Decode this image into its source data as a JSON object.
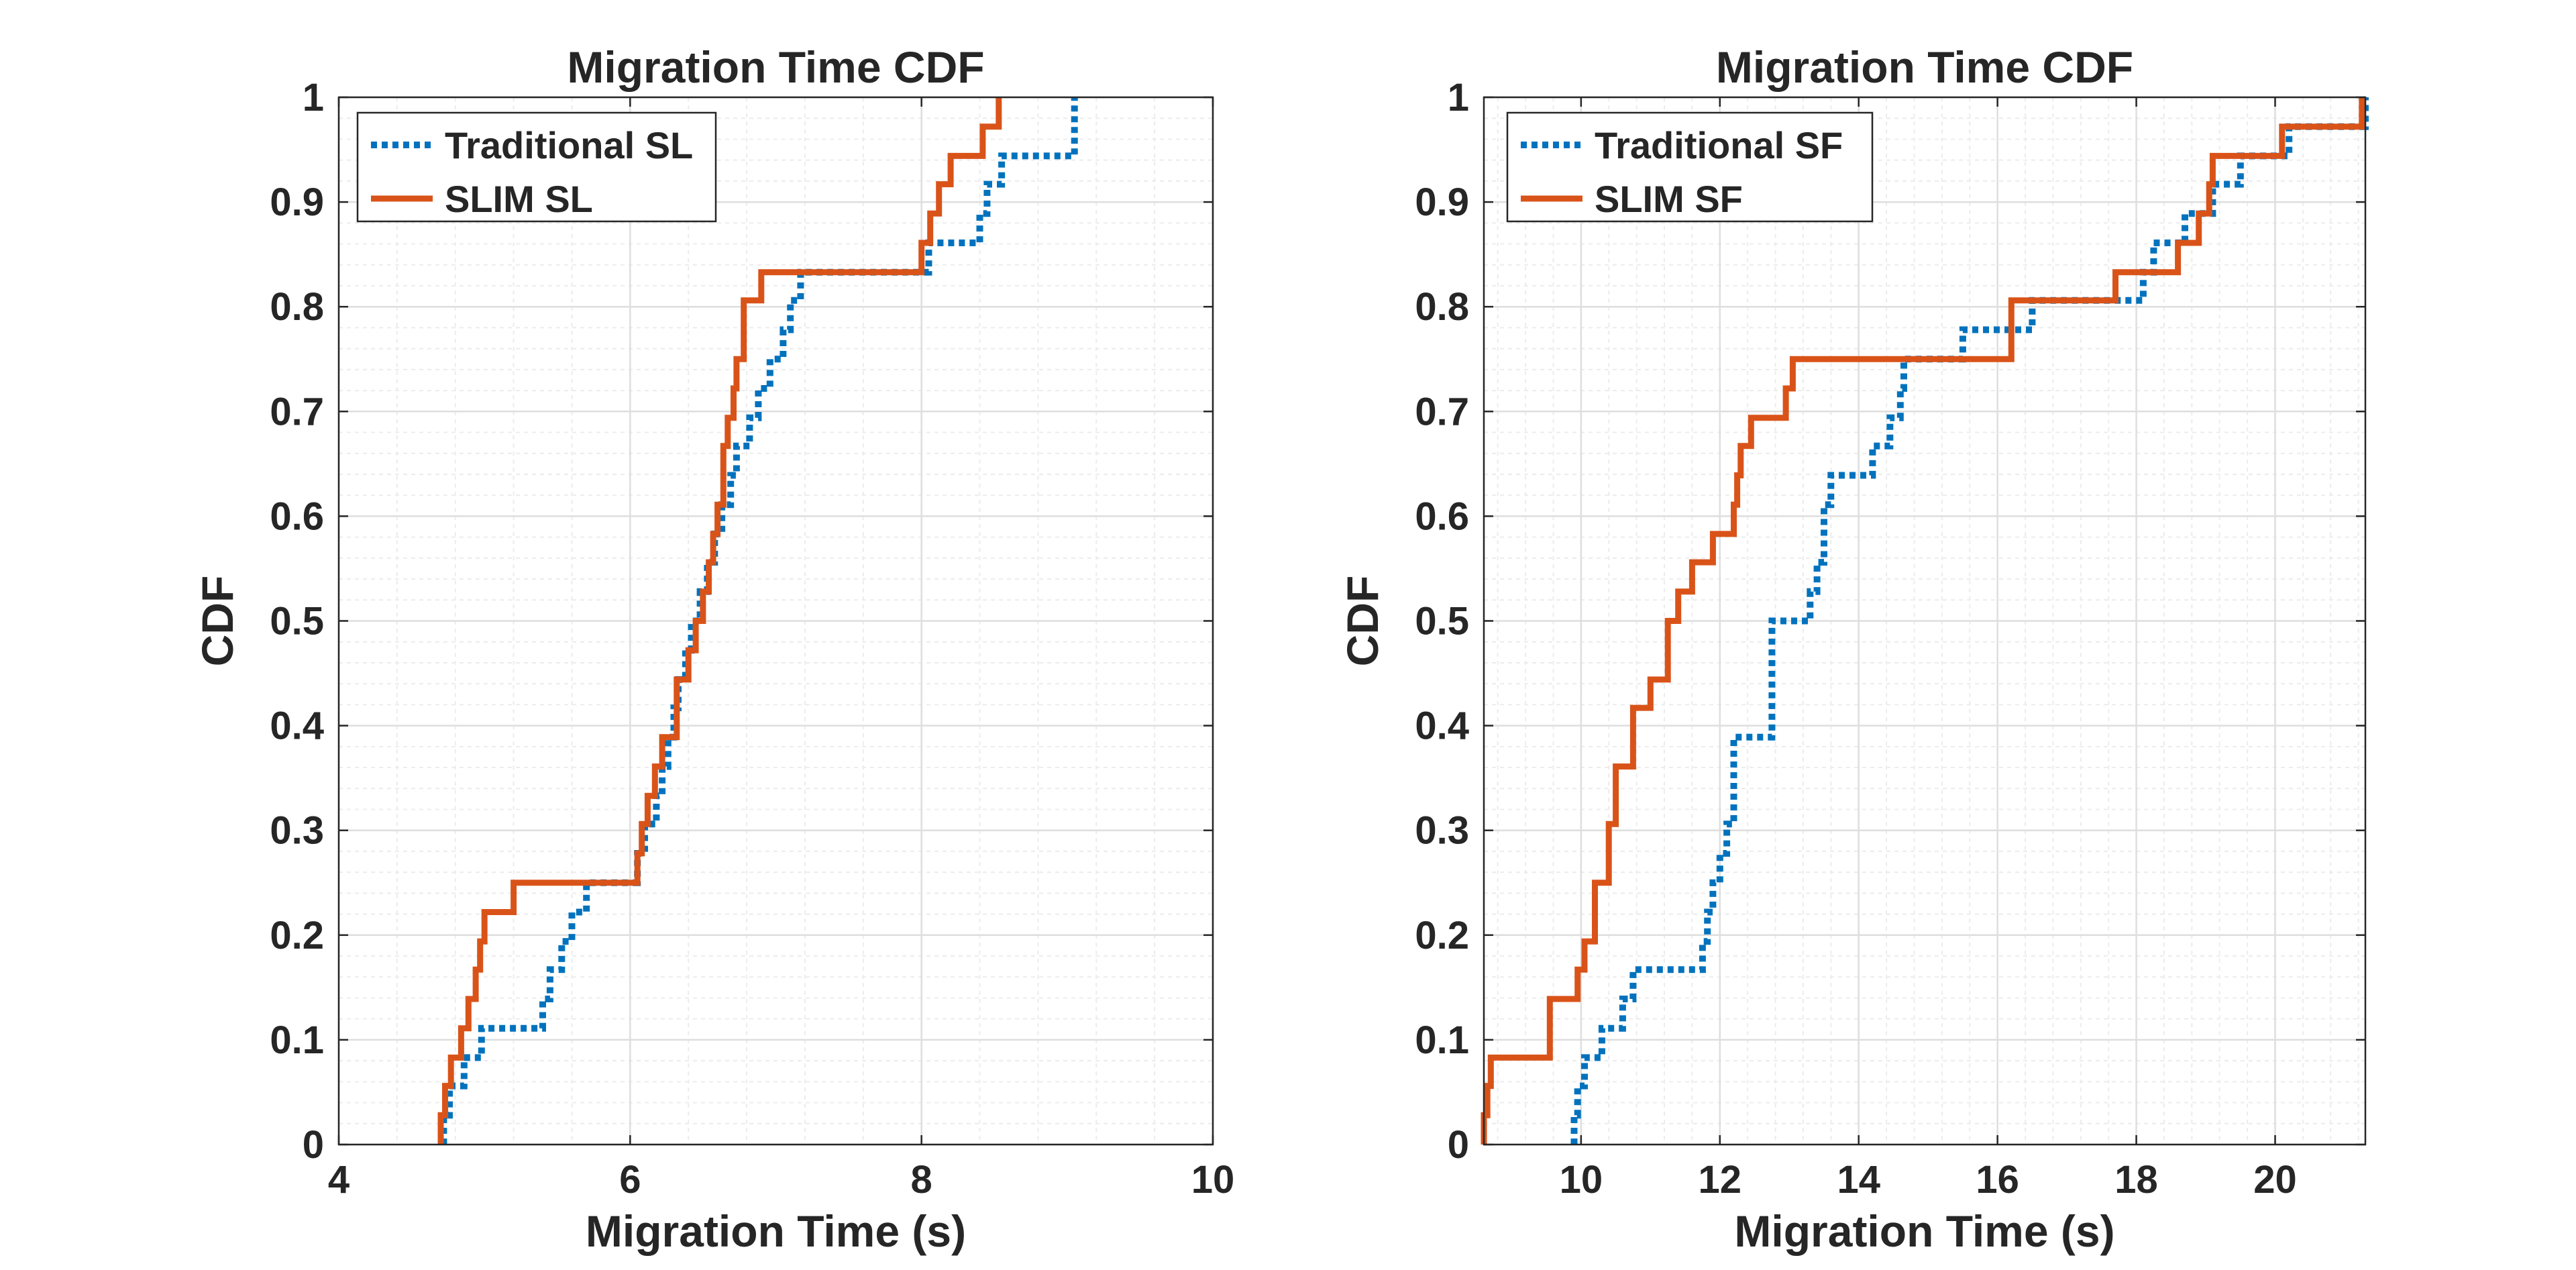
{
  "chart_data": [
    {
      "type": "line",
      "step": true,
      "title": "Migration Time CDF",
      "xlabel": "Migration Time (s)",
      "ylabel": "CDF",
      "xlim": [
        4,
        10
      ],
      "ylim": [
        0,
        1
      ],
      "xticks": [
        4,
        6,
        8,
        10
      ],
      "xtick_labels": [
        "4",
        "6",
        "8",
        "10"
      ],
      "yticks": [
        0,
        0.1,
        0.2,
        0.3,
        0.4,
        0.5,
        0.6,
        0.7,
        0.8,
        0.9,
        1
      ],
      "ytick_labels": [
        "0",
        "0.1",
        "0.2",
        "0.3",
        "0.4",
        "0.5",
        "0.6",
        "0.7",
        "0.8",
        "0.9",
        "1"
      ],
      "grid": true,
      "minor_grid": true,
      "legend_position": "top-left",
      "series": [
        {
          "name": "Traditional SL",
          "color": "#0072BD",
          "style": "dotted",
          "x": [
            4.72,
            4.76,
            4.8,
            4.86,
            4.92,
            4.98,
            5.08,
            5.4,
            5.45,
            5.53,
            5.6,
            5.64,
            5.7,
            6.0,
            6.05,
            6.1,
            6.18,
            6.22,
            6.26,
            6.3,
            6.33,
            6.38,
            6.42,
            6.48,
            6.53,
            6.58,
            6.63,
            6.69,
            6.73,
            6.82,
            6.88,
            6.96,
            7.05,
            7.1,
            7.17,
            7.22,
            8.05,
            8.4,
            8.45,
            8.55,
            9.05
          ],
          "y": [
            0.028,
            0.056,
            0.056,
            0.083,
            0.083,
            0.111,
            0.111,
            0.139,
            0.167,
            0.194,
            0.222,
            0.222,
            0.25,
            0.25,
            0.278,
            0.306,
            0.333,
            0.361,
            0.389,
            0.417,
            0.444,
            0.472,
            0.5,
            0.528,
            0.556,
            0.583,
            0.611,
            0.639,
            0.667,
            0.694,
            0.722,
            0.75,
            0.778,
            0.806,
            0.833,
            0.833,
            0.861,
            0.889,
            0.917,
            0.944,
            1.0
          ]
        },
        {
          "name": "SLIM SL",
          "color": "#D95319",
          "style": "solid",
          "x": [
            4.7,
            4.73,
            4.77,
            4.84,
            4.89,
            4.94,
            4.97,
            5.0,
            5.2,
            5.7,
            6.05,
            6.08,
            6.12,
            6.17,
            6.22,
            6.32,
            6.4,
            6.45,
            6.5,
            6.54,
            6.57,
            6.6,
            6.64,
            6.67,
            6.71,
            6.73,
            6.78,
            6.9,
            8.0,
            8.06,
            8.12,
            8.2,
            8.36,
            8.42,
            8.48,
            8.5,
            8.53
          ],
          "y": [
            0.028,
            0.056,
            0.083,
            0.111,
            0.139,
            0.167,
            0.194,
            0.222,
            0.25,
            0.25,
            0.278,
            0.306,
            0.333,
            0.361,
            0.389,
            0.444,
            0.472,
            0.5,
            0.528,
            0.556,
            0.583,
            0.611,
            0.667,
            0.694,
            0.722,
            0.75,
            0.806,
            0.833,
            0.861,
            0.889,
            0.917,
            0.944,
            0.944,
            0.972,
            0.972,
            0.972,
            1.0
          ]
        }
      ]
    },
    {
      "type": "line",
      "step": true,
      "title": "Migration Time CDF",
      "xlabel": "Migration Time (s)",
      "ylabel": "CDF",
      "xlim": [
        8.6,
        21.3
      ],
      "ylim": [
        0,
        1
      ],
      "xticks": [
        10,
        12,
        14,
        16,
        18,
        20
      ],
      "xtick_labels": [
        "10",
        "12",
        "14",
        "16",
        "18",
        "20"
      ],
      "yticks": [
        0,
        0.1,
        0.2,
        0.3,
        0.4,
        0.5,
        0.6,
        0.7,
        0.8,
        0.9,
        1
      ],
      "ytick_labels": [
        "0",
        "0.1",
        "0.2",
        "0.3",
        "0.4",
        "0.5",
        "0.6",
        "0.7",
        "0.8",
        "0.9",
        "1"
      ],
      "grid": true,
      "minor_grid": true,
      "legend_position": "top-left",
      "series": [
        {
          "name": "Traditional SF",
          "color": "#0072BD",
          "style": "dotted",
          "x": [
            9.9,
            9.95,
            10.05,
            10.15,
            10.3,
            10.45,
            10.6,
            10.75,
            10.9,
            11.0,
            11.2,
            11.75,
            11.82,
            11.9,
            12.0,
            12.1,
            12.2,
            12.4,
            12.75,
            12.85,
            13.3,
            13.4,
            13.5,
            13.6,
            13.7,
            14.2,
            14.45,
            14.6,
            14.65,
            15.5,
            16.5,
            18.1,
            18.25,
            18.7,
            19.1,
            19.5,
            20.1,
            20.2,
            21.3
          ],
          "y": [
            0.028,
            0.056,
            0.083,
            0.083,
            0.111,
            0.111,
            0.139,
            0.167,
            0.167,
            0.167,
            0.167,
            0.194,
            0.222,
            0.25,
            0.278,
            0.306,
            0.389,
            0.389,
            0.5,
            0.5,
            0.528,
            0.556,
            0.611,
            0.639,
            0.639,
            0.667,
            0.694,
            0.722,
            0.75,
            0.778,
            0.806,
            0.833,
            0.861,
            0.889,
            0.917,
            0.944,
            0.944,
            0.972,
            1.0
          ]
        },
        {
          "name": "SLIM SF",
          "color": "#D95319",
          "style": "solid",
          "x": [
            8.6,
            8.65,
            8.7,
            9.55,
            9.95,
            10.05,
            10.2,
            10.4,
            10.5,
            10.75,
            10.85,
            11.0,
            11.25,
            11.4,
            11.6,
            11.9,
            12.2,
            12.25,
            12.3,
            12.45,
            12.95,
            13.05,
            16.2,
            17.7,
            18.6,
            18.9,
            19.05,
            19.1,
            20.0,
            20.1,
            21.25
          ],
          "y": [
            0.028,
            0.056,
            0.083,
            0.139,
            0.167,
            0.194,
            0.25,
            0.306,
            0.361,
            0.417,
            0.417,
            0.444,
            0.5,
            0.528,
            0.556,
            0.583,
            0.611,
            0.639,
            0.667,
            0.694,
            0.722,
            0.75,
            0.806,
            0.833,
            0.861,
            0.889,
            0.917,
            0.944,
            0.944,
            0.972,
            1.0
          ]
        }
      ]
    }
  ]
}
